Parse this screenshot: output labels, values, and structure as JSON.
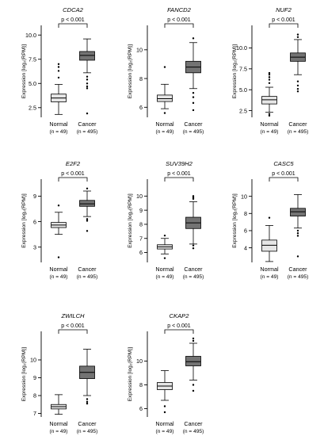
{
  "figure": {
    "ylabel": "Expression [log₂(RPM)]"
  },
  "chart_data": [
    {
      "type": "box",
      "gene": "CDCA2",
      "pvalue": "p < 0.001",
      "ylabel": "Expression [log₂(RPM)]",
      "ylim": [
        1.5,
        11
      ],
      "yticks": [
        2.5,
        5.0,
        7.5,
        10.0
      ],
      "tick_decimals": 1,
      "groups": [
        {
          "name": "Normal",
          "n": "(n = 49)",
          "fill": "#e6e6e6",
          "min": 1.8,
          "q1": 3.1,
          "median": 3.5,
          "q3": 3.9,
          "max": 4.9,
          "outliers": [
            5.6,
            6.3,
            6.7,
            7.0
          ]
        },
        {
          "name": "Cancer",
          "n": "(n = 495)",
          "fill": "#737373",
          "min": 6.1,
          "q1": 7.4,
          "median": 7.9,
          "q3": 8.3,
          "max": 9.6,
          "outliers": [
            4.5,
            4.7,
            5.0,
            5.4,
            5.7,
            1.9
          ]
        }
      ]
    },
    {
      "type": "box",
      "gene": "FANCD2",
      "pvalue": "p < 0.001",
      "ylabel": "Expression [log₂(RPM)]",
      "ylim": [
        5.3,
        11.7
      ],
      "yticks": [
        6,
        8,
        10
      ],
      "tick_decimals": 0,
      "groups": [
        {
          "name": "Normal",
          "n": "(n = 49)",
          "fill": "#e6e6e6",
          "min": 5.9,
          "q1": 6.4,
          "median": 6.6,
          "q3": 6.85,
          "max": 7.6,
          "outliers": [
            5.6,
            8.8
          ]
        },
        {
          "name": "Cancer",
          "n": "(n = 495)",
          "fill": "#737373",
          "min": 7.3,
          "q1": 8.4,
          "median": 8.8,
          "q3": 9.2,
          "max": 10.5,
          "outliers": [
            7.0,
            6.7,
            6.3,
            5.8,
            10.8
          ]
        }
      ]
    },
    {
      "type": "box",
      "gene": "NUF2",
      "pvalue": "p < 0.001",
      "ylabel": "Expression [log₂(RPM)]",
      "ylim": [
        1.7,
        12.7
      ],
      "yticks": [
        2.5,
        5.0,
        7.5,
        10.0
      ],
      "tick_decimals": 1,
      "groups": [
        {
          "name": "Normal",
          "n": "(n = 49)",
          "fill": "#e6e6e6",
          "min": 2.3,
          "q1": 3.3,
          "median": 3.8,
          "q3": 4.2,
          "max": 5.3,
          "outliers": [
            1.9,
            2.1,
            5.8,
            6.2,
            6.5,
            6.8,
            7.0
          ]
        },
        {
          "name": "Cancer",
          "n": "(n = 495)",
          "fill": "#737373",
          "min": 6.8,
          "q1": 8.4,
          "median": 8.9,
          "q3": 9.4,
          "max": 11.0,
          "outliers": [
            6.0,
            5.5,
            5.1,
            4.8,
            11.3,
            11.6
          ]
        }
      ]
    },
    {
      "type": "box",
      "gene": "E2F2",
      "pvalue": "p < 0.001",
      "ylabel": "Expression [log₂(RPM)]",
      "ylim": [
        1.2,
        11.0
      ],
      "yticks": [
        3,
        6,
        9
      ],
      "tick_decimals": 0,
      "groups": [
        {
          "name": "Normal",
          "n": "(n = 49)",
          "fill": "#e6e6e6",
          "min": 4.5,
          "q1": 5.3,
          "median": 5.6,
          "q3": 5.9,
          "max": 7.1,
          "outliers": [
            1.8,
            7.9
          ]
        },
        {
          "name": "Cancer",
          "n": "(n = 495)",
          "fill": "#737373",
          "min": 6.6,
          "q1": 7.8,
          "median": 8.1,
          "q3": 8.5,
          "max": 9.6,
          "outliers": [
            4.9,
            6.1,
            6.3,
            9.9
          ]
        }
      ]
    },
    {
      "type": "box",
      "gene": "SUV39H2",
      "pvalue": "p < 0.001",
      "ylabel": "Expression [log₂(RPM)]",
      "ylim": [
        5.3,
        11.2
      ],
      "yticks": [
        6,
        7,
        8,
        9,
        10
      ],
      "tick_decimals": 0,
      "groups": [
        {
          "name": "Normal",
          "n": "(n = 49)",
          "fill": "#e6e6e6",
          "min": 5.9,
          "q1": 6.25,
          "median": 6.4,
          "q3": 6.55,
          "max": 7.0,
          "outliers": [
            5.6,
            7.2
          ]
        },
        {
          "name": "Cancer",
          "n": "(n = 495)",
          "fill": "#737373",
          "min": 6.6,
          "q1": 7.7,
          "median": 8.1,
          "q3": 8.5,
          "max": 9.6,
          "outliers": [
            6.3,
            6.5,
            9.8,
            9.9,
            10.0
          ]
        }
      ]
    },
    {
      "type": "box",
      "gene": "CASC5",
      "pvalue": "p < 0.001",
      "ylabel": "Expression [log₂(RPM)]",
      "ylim": [
        2.3,
        12.0
      ],
      "yticks": [
        4,
        6,
        8,
        10
      ],
      "tick_decimals": 0,
      "groups": [
        {
          "name": "Normal",
          "n": "(n = 49)",
          "fill": "#e6e6e6",
          "min": 2.4,
          "q1": 3.6,
          "median": 4.3,
          "q3": 4.9,
          "max": 6.6,
          "outliers": [
            7.5
          ]
        },
        {
          "name": "Cancer",
          "n": "(n = 495)",
          "fill": "#737373",
          "min": 6.3,
          "q1": 7.7,
          "median": 8.2,
          "q3": 8.6,
          "max": 10.2,
          "outliers": [
            6.0,
            5.7,
            5.4,
            3.0
          ]
        }
      ]
    },
    {
      "type": "box",
      "gene": "ZWILCH",
      "pvalue": "p < 0.001",
      "ylabel": "Expression [log₂(RPM)]",
      "ylim": [
        6.8,
        11.6
      ],
      "yticks": [
        7,
        8,
        9,
        10
      ],
      "tick_decimals": 0,
      "groups": [
        {
          "name": "Normal",
          "n": "(n = 49)",
          "fill": "#e6e6e6",
          "min": 6.95,
          "q1": 7.25,
          "median": 7.38,
          "q3": 7.5,
          "max": 8.05,
          "outliers": []
        },
        {
          "name": "Cancer",
          "n": "(n = 495)",
          "fill": "#737373",
          "min": 8.0,
          "q1": 8.95,
          "median": 9.3,
          "q3": 9.65,
          "max": 10.6,
          "outliers": [
            7.8,
            7.65,
            7.55
          ]
        }
      ]
    },
    {
      "type": "box",
      "gene": "CKAP2",
      "pvalue": "p < 0.001",
      "ylabel": "Expression [log₂(RPM)]",
      "ylim": [
        5.3,
        12.5
      ],
      "yticks": [
        6,
        8,
        10
      ],
      "tick_decimals": 0,
      "groups": [
        {
          "name": "Normal",
          "n": "(n = 49)",
          "fill": "#e6e6e6",
          "min": 6.7,
          "q1": 7.6,
          "median": 7.9,
          "q3": 8.2,
          "max": 9.2,
          "outliers": [
            5.7,
            6.2
          ]
        },
        {
          "name": "Cancer",
          "n": "(n = 495)",
          "fill": "#737373",
          "min": 8.4,
          "q1": 9.6,
          "median": 9.95,
          "q3": 10.4,
          "max": 11.5,
          "outliers": [
            8.0,
            7.5,
            11.7,
            11.9
          ]
        }
      ]
    }
  ]
}
